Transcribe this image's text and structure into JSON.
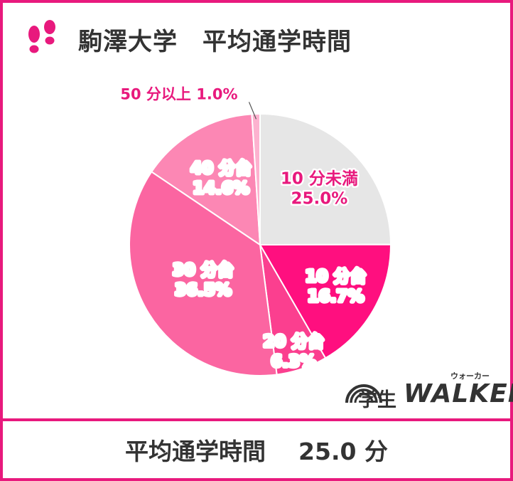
{
  "header": {
    "title": "駒澤大学　平均通学時間",
    "icon": "footprints-icon"
  },
  "chart_data": {
    "type": "pie",
    "title": "駒澤大学　平均通学時間",
    "start_angle_deg": 0,
    "direction": "clockwise",
    "slices": [
      {
        "label": "10 分未満",
        "value": 25.0,
        "value_text": "25.0%",
        "color": "#e6e6e6",
        "text_color": "#e8197d"
      },
      {
        "label": "10 分台",
        "value": 16.7,
        "value_text": "16.7%",
        "color": "#ff0f7f",
        "text_color": "#ffffff"
      },
      {
        "label": "20 分台",
        "value": 6.3,
        "value_text": "6.3%",
        "color": "#fb3f8f",
        "text_color": "#ffffff"
      },
      {
        "label": "30 分台",
        "value": 36.5,
        "value_text": "36.5%",
        "color": "#fb65a1",
        "text_color": "#ffffff"
      },
      {
        "label": "40 分台",
        "value": 14.6,
        "value_text": "14.6%",
        "color": "#fc87b4",
        "text_color": "#ffffff"
      },
      {
        "label": "50 分以上",
        "value": 1.0,
        "value_text": "1.0%",
        "color": "#fdb2cf",
        "text_color": "#e8197d"
      }
    ],
    "grid": false,
    "legend": "none"
  },
  "footer": {
    "label": "平均通学時間",
    "value": "25.0 分"
  },
  "logo": {
    "kana": "ウォーカー",
    "gaku": "学生",
    "walker": "WALKER"
  },
  "colors": {
    "accent": "#e8197d",
    "text": "#333333"
  }
}
